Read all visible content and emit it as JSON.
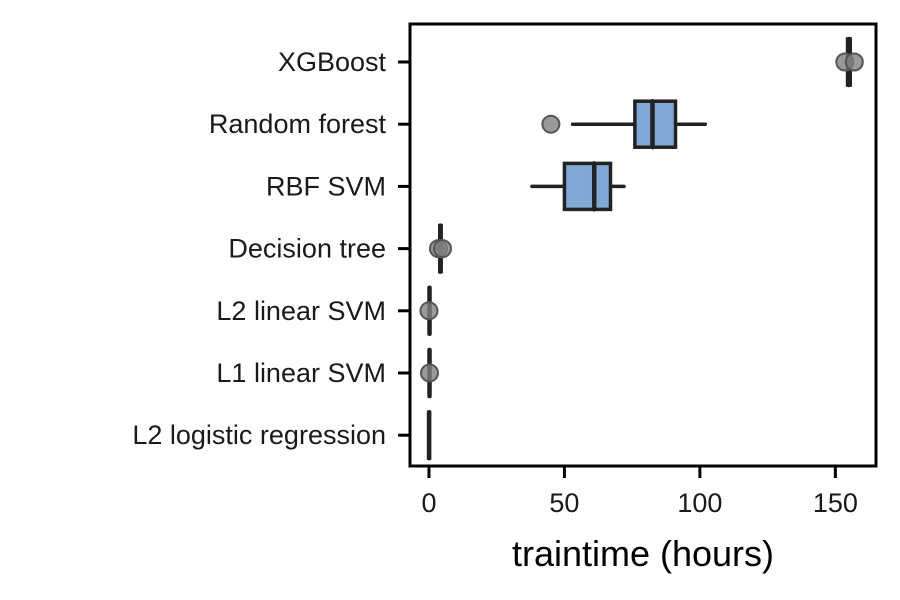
{
  "chart_data": {
    "type": "box",
    "orientation": "horizontal",
    "xlabel": "traintime (hours)",
    "ylabel": "",
    "xlim": [
      -7,
      165
    ],
    "xticks": [
      0,
      50,
      100,
      150
    ],
    "grid": false,
    "box_color": "#7fa8d4",
    "line_color": "#222222",
    "outlier_color": "#808080",
    "categories": [
      "XGBoost",
      "Random forest",
      "RBF SVM",
      "Decision tree",
      "L2 linear SVM",
      "L1 linear SVM",
      "L2 logistic regression"
    ],
    "boxes": [
      {
        "category": "XGBoost",
        "whisker_low": 154,
        "q1": 154.5,
        "median": 155,
        "q3": 155.5,
        "whisker_high": 156,
        "outliers": [
          153.5,
          157
        ]
      },
      {
        "category": "Random forest",
        "whisker_low": 53,
        "q1": 76,
        "median": 82.5,
        "q3": 91,
        "whisker_high": 102,
        "outliers": [
          45
        ]
      },
      {
        "category": "RBF SVM",
        "whisker_low": 38,
        "q1": 50,
        "median": 61,
        "q3": 67,
        "whisker_high": 72,
        "outliers": []
      },
      {
        "category": "Decision tree",
        "whisker_low": 3,
        "q1": 4,
        "median": 4.2,
        "q3": 4.5,
        "whisker_high": 5,
        "outliers": [
          3.5,
          5
        ]
      },
      {
        "category": "L2 linear SVM",
        "whisker_low": 0,
        "q1": 0.1,
        "median": 0.2,
        "q3": 0.3,
        "whisker_high": 0.4,
        "outliers": [
          0
        ]
      },
      {
        "category": "L1 linear SVM",
        "whisker_low": 0,
        "q1": 0.1,
        "median": 0.2,
        "q3": 0.3,
        "whisker_high": 0.4,
        "outliers": [
          0.2
        ]
      },
      {
        "category": "L2 logistic regression",
        "whisker_low": 0,
        "q1": 0.02,
        "median": 0.03,
        "q3": 0.04,
        "whisker_high": 0.05,
        "outliers": []
      }
    ]
  }
}
